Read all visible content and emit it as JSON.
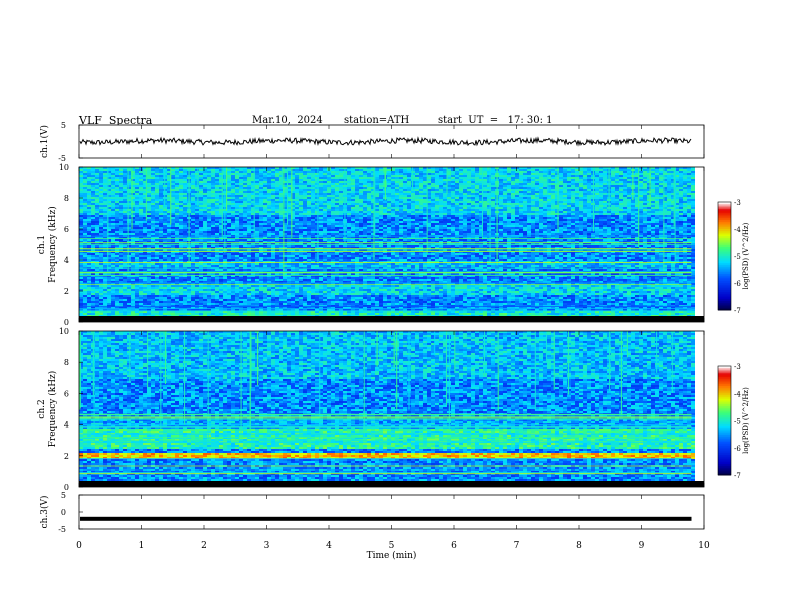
{
  "header": {
    "title": "VLF  Spectra",
    "date": "Mar.10,  2024",
    "station": "station=ATH",
    "start_ut": "start  UT  =   17: 30: 1"
  },
  "chart_data": [
    {
      "type": "line",
      "panel": "ch1-waveform",
      "ylabel": "ch.1(V)",
      "ylim": [
        -5,
        5
      ],
      "yticks": [
        "5",
        "-5"
      ],
      "xlim": [
        0,
        10
      ],
      "level": 0,
      "color": "#000000"
    },
    {
      "type": "heatmap",
      "panel": "ch1-spectrogram",
      "ylabel": "ch.1\nFrequency  (kHz)",
      "ylim": [
        0,
        10
      ],
      "yticks": [
        "0",
        "2",
        "4",
        "6",
        "8",
        "10"
      ],
      "xlim": [
        0,
        9.8
      ],
      "colorbar": {
        "label": "log(PSD) (V^2/Hz)",
        "range": [
          -7,
          -3
        ],
        "ticks": [
          "-3",
          "-4",
          "-5",
          "-6",
          "-7"
        ]
      },
      "bands": [
        {
          "f_khz": [
            0.3,
            0.8
          ],
          "log_psd": -5.0
        },
        {
          "f_khz": [
            1.8,
            2.4
          ],
          "log_psd": -5.2
        },
        {
          "f_khz": [
            3.6,
            4.0
          ],
          "log_psd": -5.3
        },
        {
          "f_khz": [
            7.0,
            10.0
          ],
          "log_psd": -5.2
        }
      ]
    },
    {
      "type": "heatmap",
      "panel": "ch2-spectrogram",
      "ylabel": "ch.2\nFrequency  (kHz)",
      "ylim": [
        0,
        10
      ],
      "yticks": [
        "0",
        "2",
        "4",
        "6",
        "8",
        "10"
      ],
      "xlim": [
        0,
        9.8
      ],
      "colorbar": {
        "label": "log(PSD) (V^2/Hz)",
        "range": [
          -7,
          -3
        ],
        "ticks": [
          "-3",
          "-4",
          "-5",
          "-6",
          "-7"
        ]
      },
      "bands": [
        {
          "f_khz": [
            1.8,
            2.3
          ],
          "log_psd": -4.0
        },
        {
          "f_khz": [
            2.5,
            3.8
          ],
          "log_psd": -4.9
        },
        {
          "f_khz": [
            3.8,
            4.6
          ],
          "log_psd": -5.4
        },
        {
          "f_khz": [
            7.0,
            10.0
          ],
          "log_psd": -5.3
        }
      ]
    },
    {
      "type": "line",
      "panel": "ch3-waveform",
      "ylabel": "ch.3(V)",
      "ylim": [
        -5,
        5
      ],
      "yticks": [
        "5",
        "0",
        "-5"
      ],
      "xlim": [
        0,
        10
      ],
      "level": -2,
      "color": "#000000"
    }
  ],
  "xaxis": {
    "label": "Time  (min)",
    "ticks": [
      "0",
      "1",
      "2",
      "3",
      "4",
      "5",
      "6",
      "7",
      "8",
      "9",
      "10"
    ],
    "range": [
      0,
      10
    ]
  }
}
